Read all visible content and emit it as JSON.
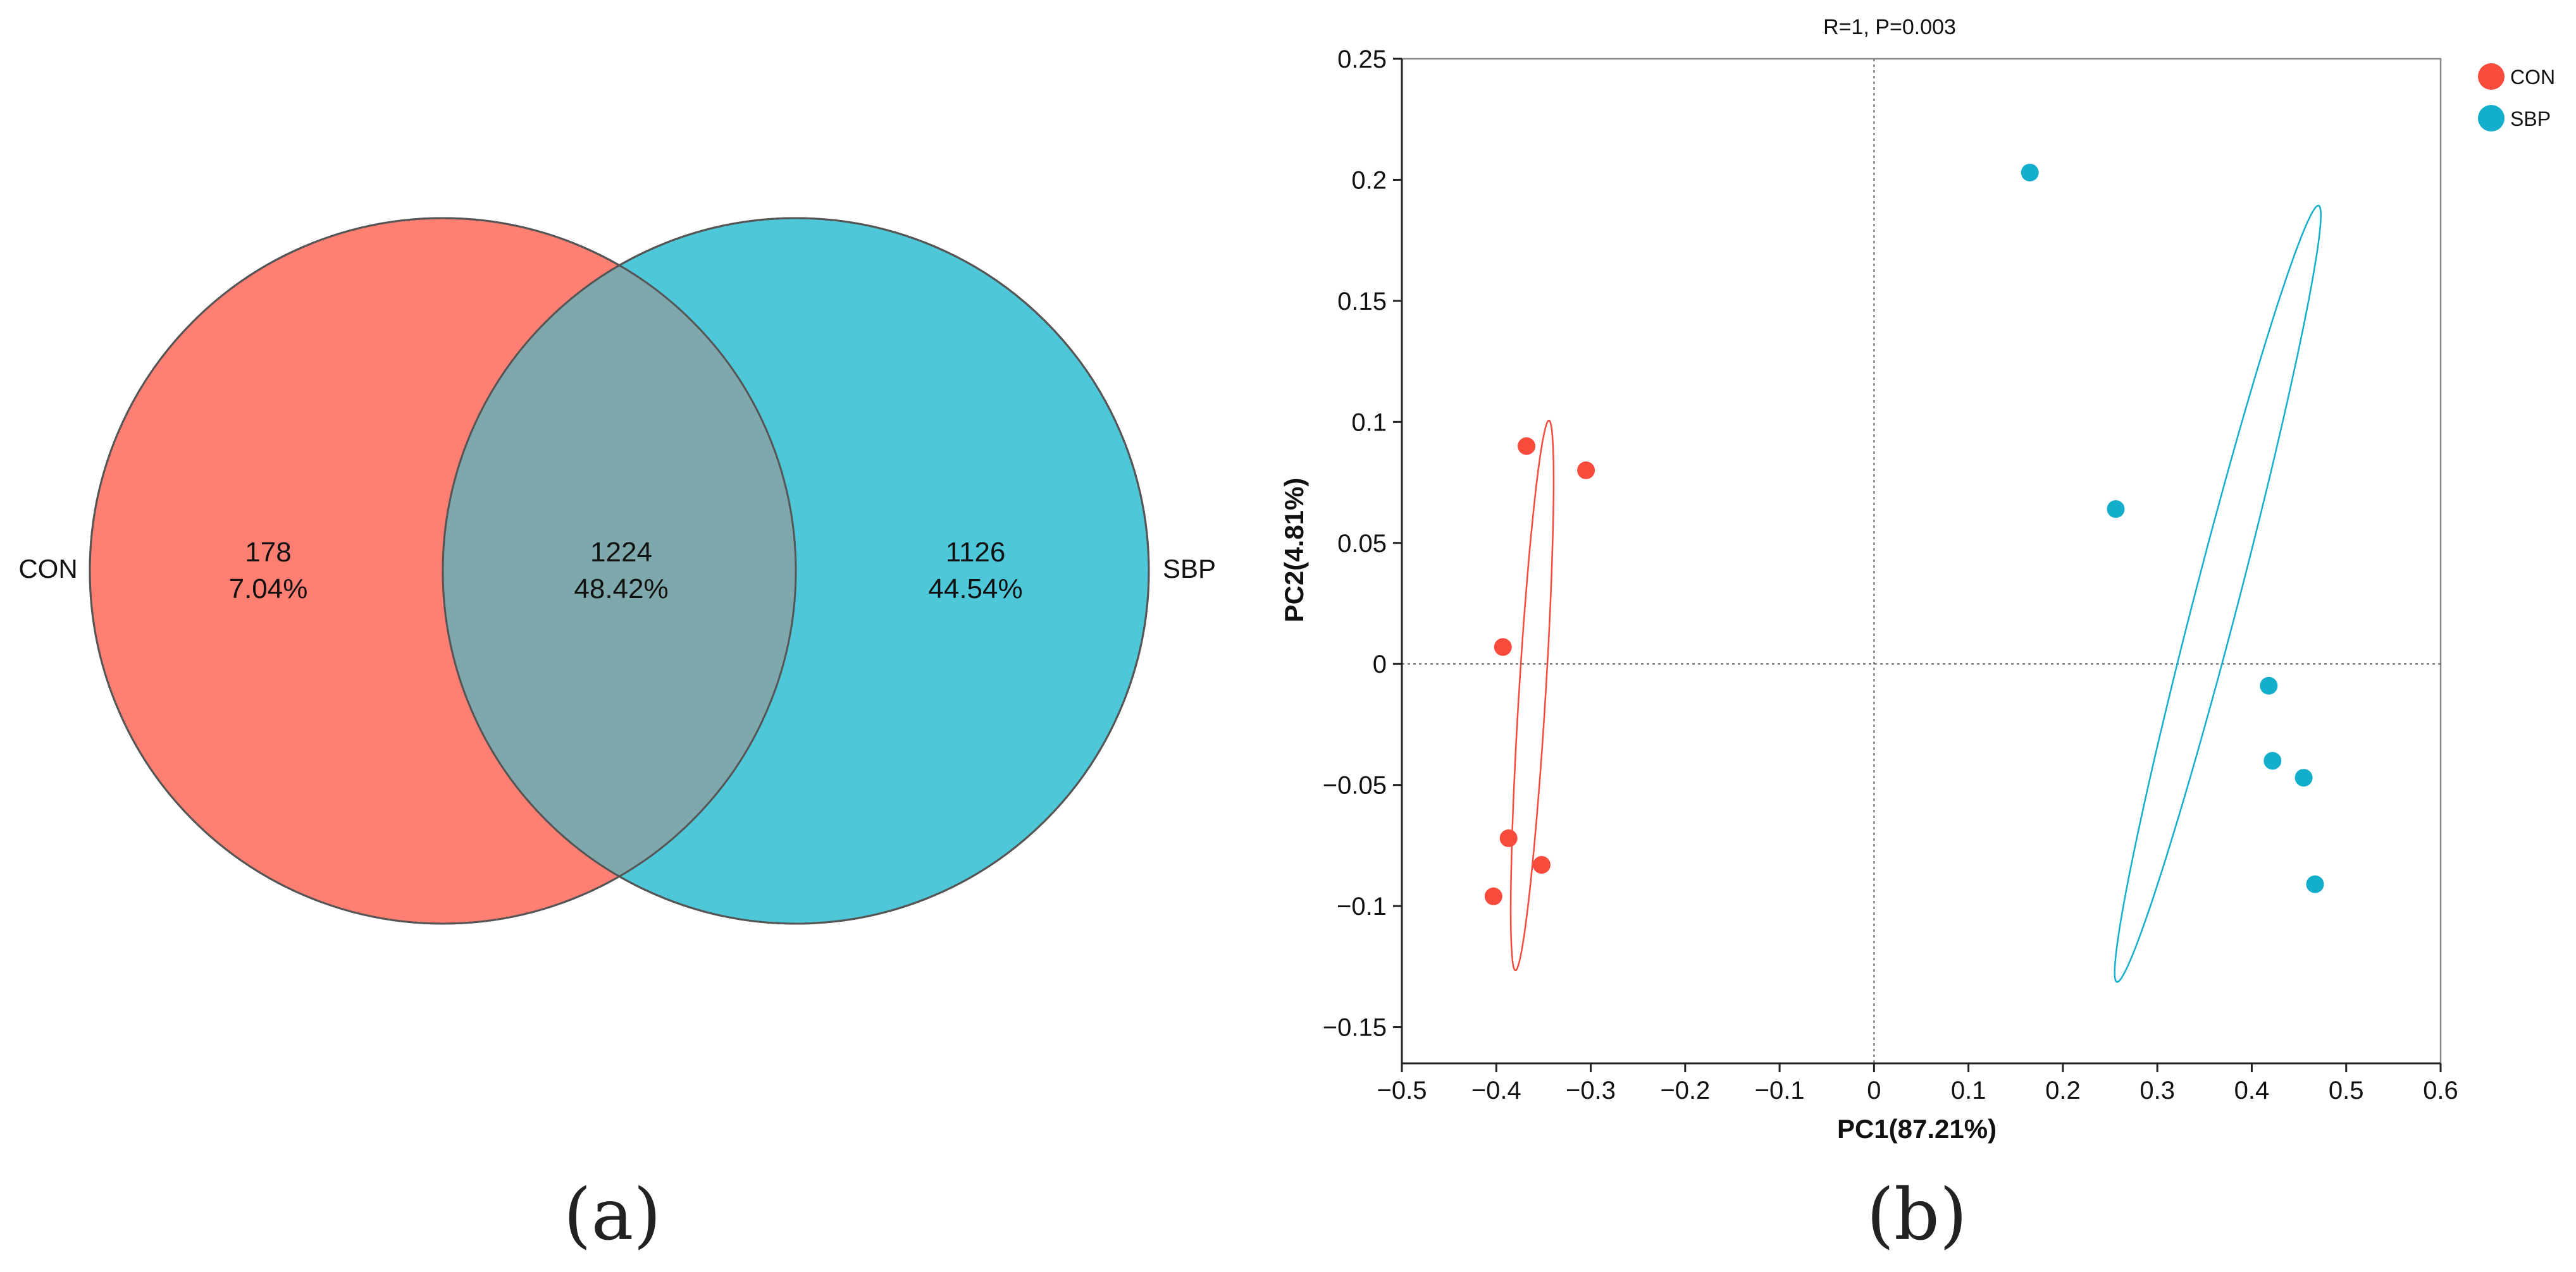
{
  "panels": {
    "a": {
      "label": "(a)"
    },
    "b": {
      "label": "(b)"
    }
  },
  "colors": {
    "con": "#ff7f72",
    "sbp": "#4ec7d8",
    "overlap": "#7fa8ad",
    "con_point": "#f84b3c",
    "sbp_point": "#12aecb",
    "axis": "#222222",
    "guide": "#666666"
  },
  "chart_data": [
    {
      "type": "venn",
      "sets": [
        {
          "name": "CON",
          "unique_count": "178",
          "unique_percent": "7.04%"
        },
        {
          "name": "SBP",
          "unique_count": "1126",
          "unique_percent": "44.54%"
        }
      ],
      "intersection": {
        "count": "1224",
        "percent": "48.42%"
      }
    },
    {
      "type": "scatter",
      "title": "R=1, P=0.003",
      "xlabel": "PC1(87.21%)",
      "ylabel": "PC2(4.81%)",
      "xlim": [
        -0.5,
        0.6
      ],
      "ylim": [
        -0.165,
        0.25
      ],
      "xticks": [
        -0.5,
        -0.4,
        -0.3,
        -0.2,
        -0.1,
        0,
        0.1,
        0.2,
        0.3,
        0.4,
        0.5,
        0.6
      ],
      "yticks": [
        -0.15,
        -0.1,
        -0.05,
        0,
        0.05,
        0.1,
        0.15,
        0.2,
        0.25
      ],
      "guides": {
        "x": 0,
        "y": 0
      },
      "legend_position": "top-right",
      "series": [
        {
          "name": "CON",
          "points": [
            {
              "x": -0.368,
              "y": 0.09
            },
            {
              "x": -0.305,
              "y": 0.08
            },
            {
              "x": -0.393,
              "y": 0.007
            },
            {
              "x": -0.387,
              "y": -0.072
            },
            {
              "x": -0.352,
              "y": -0.083
            },
            {
              "x": -0.403,
              "y": -0.096
            }
          ],
          "ellipse": {
            "center": [
              -0.362,
              -0.013
            ],
            "semi_major": 0.115,
            "semi_minor": 0.014,
            "angle_deg": 81
          }
        },
        {
          "name": "SBP",
          "points": [
            {
              "x": 0.165,
              "y": 0.203
            },
            {
              "x": 0.256,
              "y": 0.064
            },
            {
              "x": 0.418,
              "y": -0.009
            },
            {
              "x": 0.422,
              "y": -0.04
            },
            {
              "x": 0.455,
              "y": -0.047
            },
            {
              "x": 0.467,
              "y": -0.091
            }
          ],
          "ellipse": {
            "center": [
              0.364,
              0.029
            ],
            "semi_major": 0.193,
            "semi_minor": 0.02,
            "angle_deg": 56
          }
        }
      ]
    }
  ]
}
